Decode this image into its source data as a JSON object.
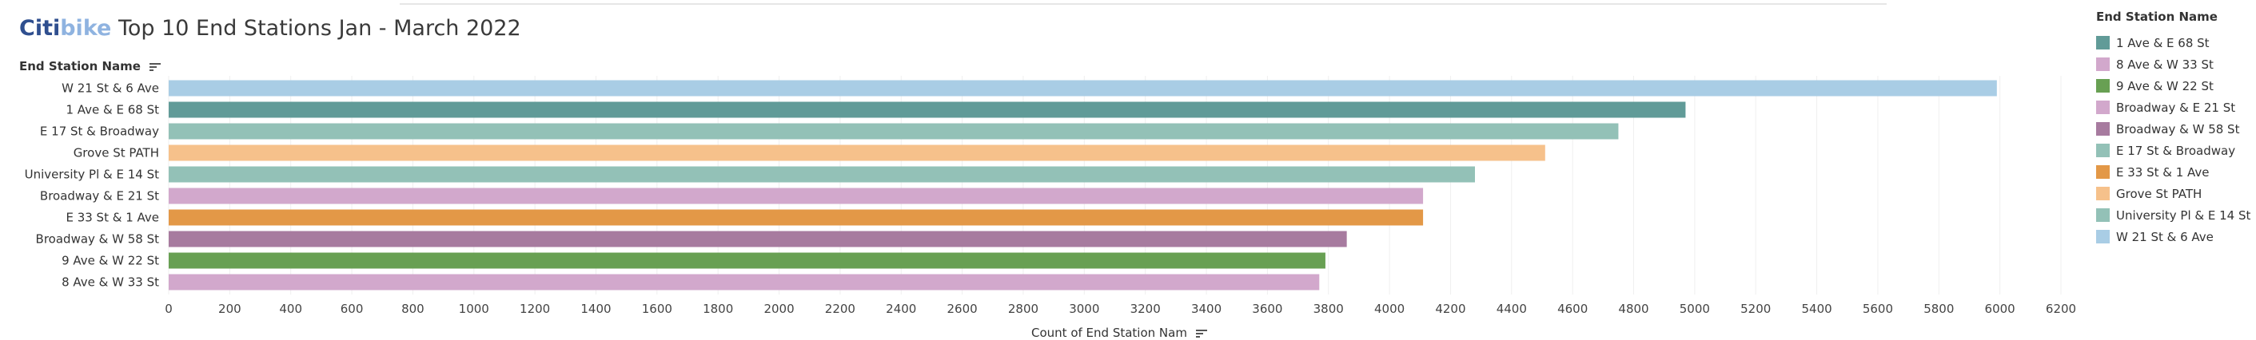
{
  "header": {
    "brand_part1": "Citi",
    "brand_part2": "bike",
    "title": "Top 10 End Stations Jan - March 2022"
  },
  "row_header": "End Station Name",
  "axis_title": "Count of End Station Nam",
  "legend": {
    "title": "End Station Name",
    "items": [
      {
        "label": "1 Ave & E 68 St",
        "color": "#619b98"
      },
      {
        "label": "8 Ave & W 33 St",
        "color": "#d2a8cc"
      },
      {
        "label": "9 Ave & W 22 St",
        "color": "#68a053"
      },
      {
        "label": "Broadway & E 21 St",
        "color": "#d2a8cc"
      },
      {
        "label": "Broadway & W 58 St",
        "color": "#a77b9f"
      },
      {
        "label": "E 17 St & Broadway",
        "color": "#93c1b7"
      },
      {
        "label": "E 33 St & 1 Ave",
        "color": "#e39847"
      },
      {
        "label": "Grove St PATH",
        "color": "#f6c18b"
      },
      {
        "label": "University Pl & E 14 St",
        "color": "#93c1b7"
      },
      {
        "label": "W 21 St & 6 Ave",
        "color": "#a9cde5"
      }
    ]
  },
  "chart_data": {
    "type": "bar",
    "orientation": "horizontal",
    "categories": [
      "W 21 St & 6 Ave",
      "1 Ave & E 68 St",
      "E 17 St & Broadway",
      "Grove St PATH",
      "University Pl & E 14 St",
      "Broadway & E 21 St",
      "E 33 St & 1 Ave",
      "Broadway & W 58 St",
      "9 Ave & W 22 St",
      "8 Ave & W 33 St"
    ],
    "values": [
      5990,
      4970,
      4750,
      4510,
      4280,
      4110,
      4110,
      3860,
      3790,
      3770
    ],
    "colors": [
      "#a9cde5",
      "#619b98",
      "#93c1b7",
      "#f6c18b",
      "#93c1b7",
      "#d2a8cc",
      "#e39847",
      "#a77b9f",
      "#68a053",
      "#d2a8cc"
    ],
    "xlim": [
      0,
      6200
    ],
    "ticks": [
      0,
      200,
      400,
      600,
      800,
      1000,
      1200,
      1400,
      1600,
      1800,
      2000,
      2200,
      2400,
      2600,
      2800,
      3000,
      3200,
      3400,
      3600,
      3800,
      4000,
      4200,
      4400,
      4600,
      4800,
      5000,
      5200,
      5400,
      5600,
      5800,
      6000,
      6200
    ],
    "grid": true
  }
}
